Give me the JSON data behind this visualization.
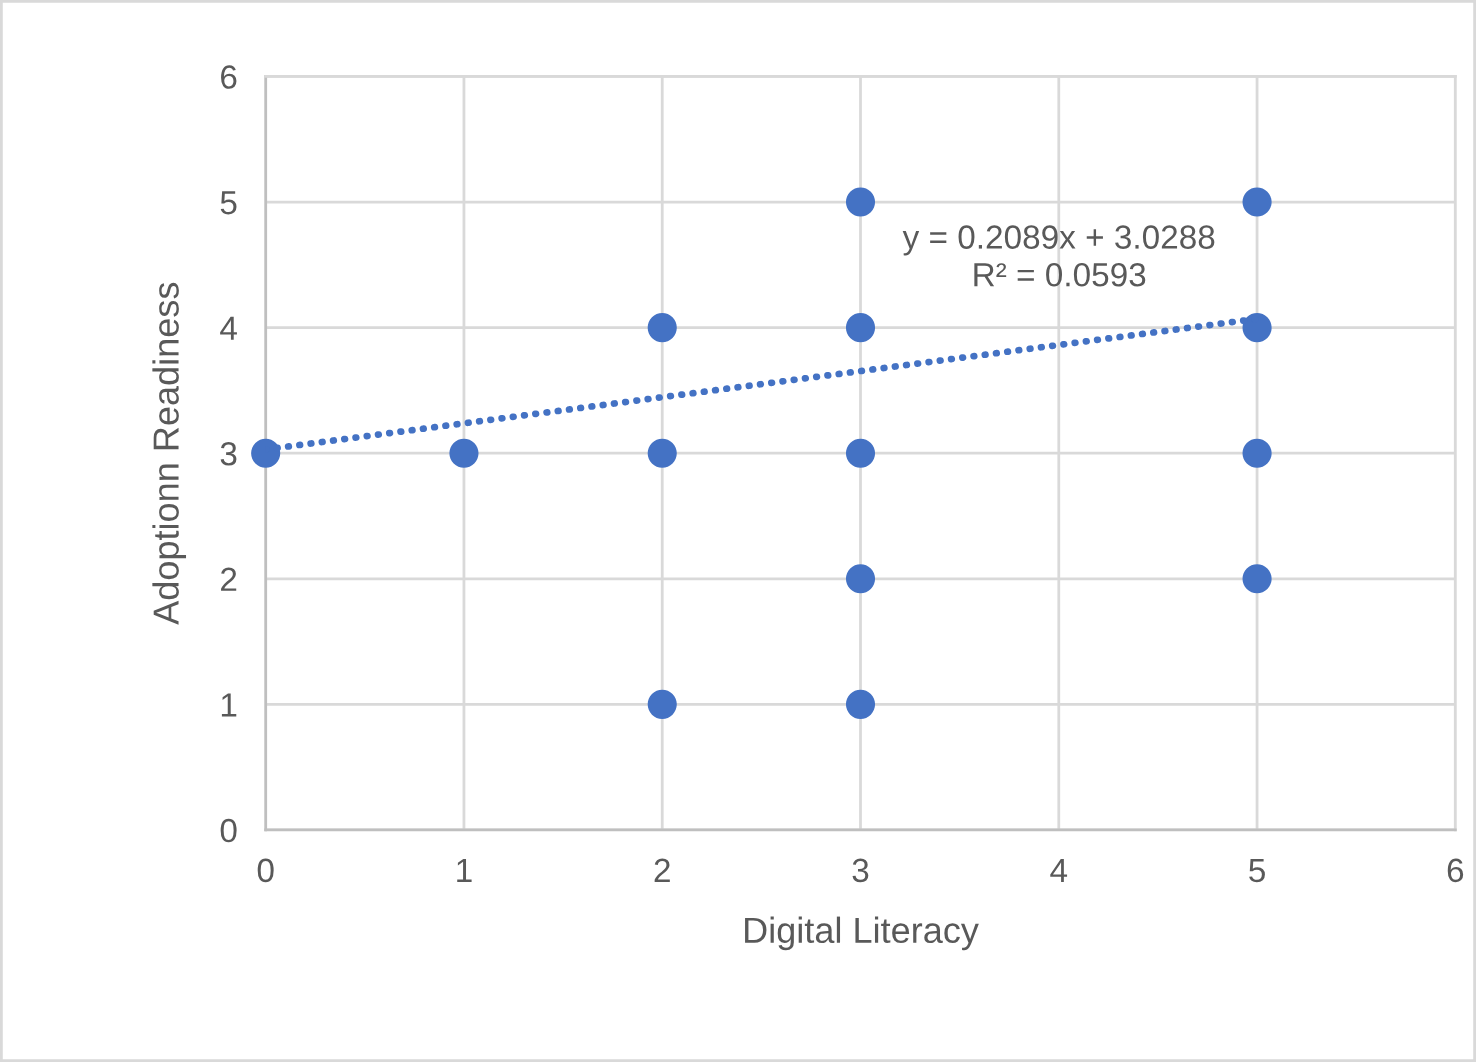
{
  "chart_data": {
    "type": "scatter",
    "xlabel": "Digital Literacy",
    "ylabel": "Adoptionn Readiness",
    "annotations": [
      "y = 0.2089x + 3.0288",
      "R² = 0.0593"
    ],
    "series": [
      {
        "color": "#4472c4",
        "marker": "circle",
        "x": [
          0,
          1,
          2,
          2,
          2,
          3,
          3,
          3,
          3,
          3,
          5,
          5,
          5,
          5
        ],
        "values": [
          3,
          3,
          4,
          3,
          1,
          5,
          4,
          3,
          2,
          1,
          5,
          4,
          3,
          2
        ]
      },
      {
        "type": "line",
        "color": "#4472c4",
        "line_style": "dotted",
        "x": [
          0,
          5
        ],
        "values": [
          3.03,
          4.07
        ]
      }
    ],
    "xlim": [
      0,
      6
    ],
    "ylim": [
      0,
      6
    ],
    "xticks": [
      0,
      1,
      2,
      3,
      4,
      5,
      6
    ],
    "yticks": [
      0,
      1,
      2,
      3,
      4,
      5,
      6
    ],
    "grid": true
  }
}
